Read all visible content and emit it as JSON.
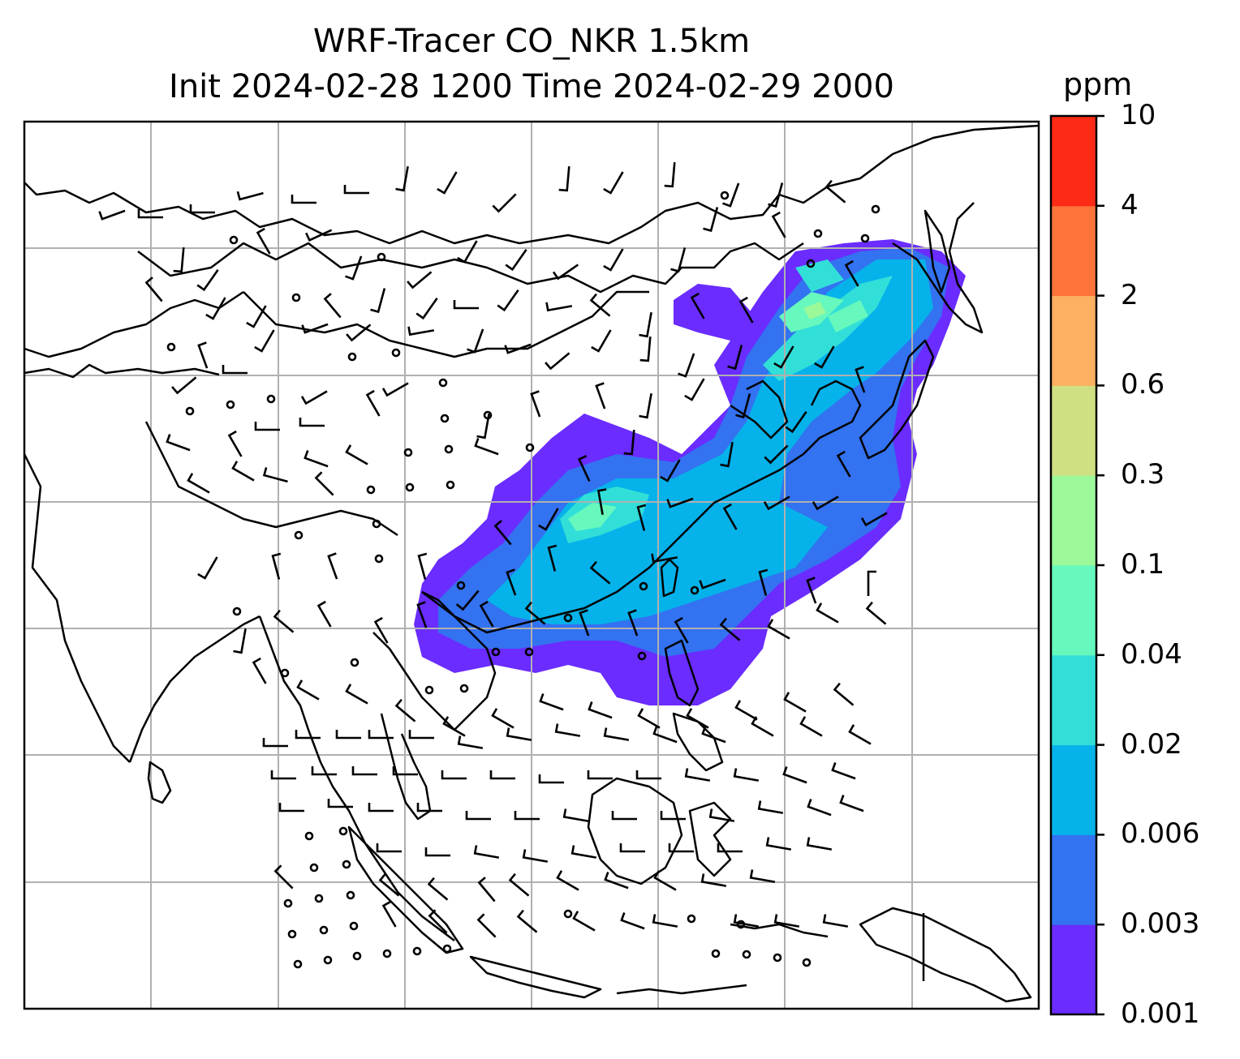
{
  "title_line1": "WRF-Tracer CO_NKR 1.5km",
  "title_line2": "Init 2024-02-28 1200 Time 2024-02-29 2000",
  "colorbar": {
    "unit": "ppm",
    "levels": [
      "0.001",
      "0.003",
      "0.006",
      "0.02",
      "0.04",
      "0.1",
      "0.3",
      "0.6",
      "2",
      "4",
      "10"
    ],
    "colors": [
      "#6a2cff",
      "#3372f0",
      "#06b2ea",
      "#31dfd8",
      "#66f8bd",
      "#9bf99a",
      "#cfe083",
      "#fdb061",
      "#fd733a",
      "#fd2a15"
    ]
  },
  "map_style": {
    "gridlines": true,
    "coastlines": true,
    "borders": true,
    "wind_barbs": true,
    "calm_wind_markers": true
  }
}
